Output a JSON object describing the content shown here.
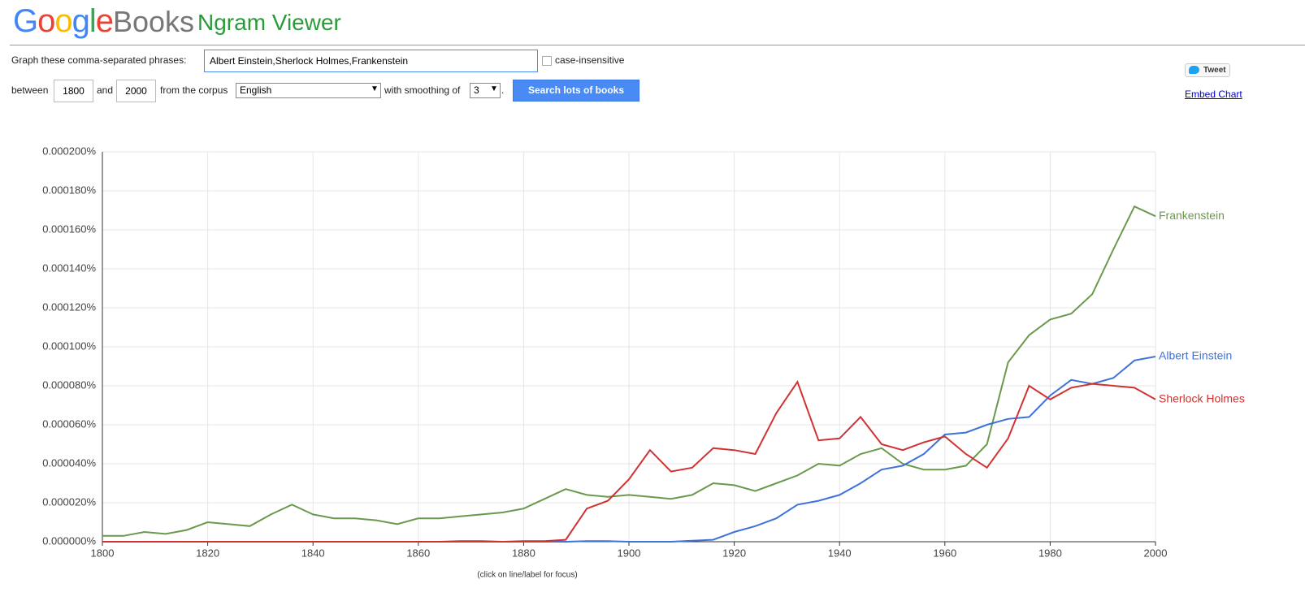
{
  "header": {
    "logo_google": "Google",
    "logo_books": "Books",
    "app_title": "Ngram Viewer"
  },
  "form": {
    "phrases_label": "Graph these comma-separated phrases:",
    "phrases_value": "Albert Einstein,Sherlock Holmes,Frankenstein",
    "case_insensitive": "case-insensitive",
    "between": "between",
    "start_year": "1800",
    "and": "and",
    "end_year": "2000",
    "corpus_label": "from the corpus",
    "corpus": "English",
    "smoothing_label": "with smoothing of",
    "smoothing": "3",
    "smoothing_suffix": ".",
    "search_button": "Search lots of books"
  },
  "share": {
    "tweet": "Tweet",
    "embed": "Embed Chart"
  },
  "chart_data": {
    "type": "line",
    "note": "(click on line/label for focus)",
    "grid": true,
    "x": [
      1800,
      1804,
      1808,
      1812,
      1816,
      1820,
      1824,
      1828,
      1832,
      1836,
      1840,
      1844,
      1848,
      1852,
      1856,
      1860,
      1864,
      1868,
      1872,
      1876,
      1880,
      1884,
      1888,
      1892,
      1896,
      1900,
      1904,
      1908,
      1912,
      1916,
      1920,
      1924,
      1928,
      1932,
      1936,
      1940,
      1944,
      1948,
      1952,
      1956,
      1960,
      1964,
      1968,
      1972,
      1976,
      1980,
      1984,
      1988,
      1992,
      1996,
      2000
    ],
    "xlim": [
      1800,
      2000
    ],
    "xticks": [
      1800,
      1820,
      1840,
      1860,
      1880,
      1900,
      1920,
      1940,
      1960,
      1980,
      2000
    ],
    "ylim": [
      0,
      0.0002
    ],
    "yticks": [
      {
        "value": 0,
        "label": "0.000000%"
      },
      {
        "value": 2e-05,
        "label": "0.000020%"
      },
      {
        "value": 4e-05,
        "label": "0.000040%"
      },
      {
        "value": 6e-05,
        "label": "0.000060%"
      },
      {
        "value": 8e-05,
        "label": "0.000080%"
      },
      {
        "value": 0.0001,
        "label": "0.000100%"
      },
      {
        "value": 0.00012,
        "label": "0.000120%"
      },
      {
        "value": 0.00014,
        "label": "0.000140%"
      },
      {
        "value": 0.00016,
        "label": "0.000160%"
      },
      {
        "value": 0.00018,
        "label": "0.000180%"
      },
      {
        "value": 0.0002,
        "label": "0.000200%"
      }
    ],
    "series": [
      {
        "name": "Frankenstein",
        "color": "#6a994e",
        "values": [
          3e-06,
          3e-06,
          5e-06,
          4e-06,
          6e-06,
          1e-05,
          9e-06,
          8e-06,
          1.4e-05,
          1.9e-05,
          1.4e-05,
          1.2e-05,
          1.2e-05,
          1.1e-05,
          9e-06,
          1.2e-05,
          1.2e-05,
          1.3e-05,
          1.4e-05,
          1.5e-05,
          1.7e-05,
          2.2e-05,
          2.7e-05,
          2.4e-05,
          2.3e-05,
          2.4e-05,
          2.3e-05,
          2.2e-05,
          2.4e-05,
          3e-05,
          2.9e-05,
          2.6e-05,
          3e-05,
          3.4e-05,
          4e-05,
          3.9e-05,
          4.5e-05,
          4.8e-05,
          4e-05,
          3.7e-05,
          3.7e-05,
          3.9e-05,
          5e-05,
          9.2e-05,
          0.000106,
          0.000114,
          0.000117,
          0.000127,
          0.00015,
          0.000172,
          0.000167
        ]
      },
      {
        "name": "Albert Einstein",
        "color": "#3f72d9",
        "values": [
          0,
          0,
          0,
          0,
          0,
          0,
          0,
          0,
          0,
          0,
          0,
          0,
          0,
          0,
          0,
          0,
          0,
          0,
          0,
          0,
          0,
          0,
          0,
          3e-07,
          3e-07,
          0,
          0,
          0,
          5e-07,
          1e-06,
          5e-06,
          8e-06,
          1.2e-05,
          1.9e-05,
          2.1e-05,
          2.4e-05,
          3e-05,
          3.7e-05,
          3.9e-05,
          4.5e-05,
          5.5e-05,
          5.6e-05,
          6e-05,
          6.3e-05,
          6.4e-05,
          7.5e-05,
          8.3e-05,
          8.1e-05,
          8.4e-05,
          9.3e-05,
          9.5e-05
        ]
      },
      {
        "name": "Sherlock Holmes",
        "color": "#d03232",
        "values": [
          0,
          0,
          0,
          0,
          0,
          0,
          0,
          0,
          0,
          0,
          0,
          0,
          0,
          0,
          0,
          0,
          0,
          3e-07,
          3e-07,
          0,
          3e-07,
          3e-07,
          1e-06,
          1.7e-05,
          2.1e-05,
          3.2e-05,
          4.7e-05,
          3.6e-05,
          3.8e-05,
          4.8e-05,
          4.7e-05,
          4.5e-05,
          6.6e-05,
          8.2e-05,
          5.2e-05,
          5.3e-05,
          6.4e-05,
          5e-05,
          4.7e-05,
          5.1e-05,
          5.4e-05,
          4.5e-05,
          3.8e-05,
          5.3e-05,
          8e-05,
          7.3e-05,
          7.9e-05,
          8.1e-05,
          8e-05,
          7.9e-05,
          7.3e-05
        ]
      }
    ]
  }
}
